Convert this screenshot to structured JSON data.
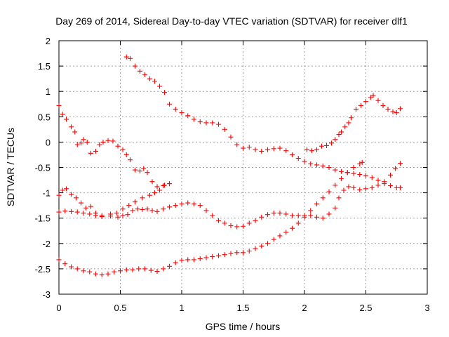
{
  "chart_data": {
    "type": "scatter",
    "title": "Day 269 of 2014, Sidereal Day-to-day VTEC variation (SDTVAR) for receiver dlf1",
    "xlabel": "GPS time / hours",
    "ylabel": "SDTVAR / TECUs",
    "xlim": [
      0,
      3
    ],
    "ylim": [
      -3,
      2
    ],
    "xticks": [
      0,
      0.5,
      1,
      1.5,
      2,
      2.5,
      3
    ],
    "xtick_labels": [
      "0",
      "0.5",
      "1",
      "1.5",
      "2",
      "2.5",
      "3"
    ],
    "yticks": [
      -3,
      -2.5,
      -2,
      -1.5,
      -1,
      -0.5,
      0,
      0.5,
      1,
      1.5,
      2
    ],
    "ytick_labels": [
      "-3",
      "-2.5",
      "-2",
      "-1.5",
      "-1",
      "-0.5",
      "0",
      "0.5",
      "1",
      "1.5",
      "2"
    ],
    "grid": true,
    "marker": "+",
    "color": "#ff0000",
    "series": [
      {
        "points": [
          [
            0.0,
            0.72
          ],
          [
            0.03,
            0.55
          ],
          [
            0.06,
            0.45
          ],
          [
            0.1,
            0.3
          ],
          [
            0.13,
            0.2
          ],
          [
            0.15,
            -0.05
          ],
          [
            0.18,
            -0.02
          ],
          [
            0.2,
            0.05
          ],
          [
            0.23,
            0.0
          ],
          [
            0.26,
            -0.22
          ],
          [
            0.3,
            -0.18
          ],
          [
            0.33,
            -0.05
          ],
          [
            0.36,
            0.0
          ],
          [
            0.4,
            0.03
          ],
          [
            0.44,
            0.02
          ],
          [
            0.48,
            -0.08
          ],
          [
            0.52,
            -0.15
          ],
          [
            0.55,
            -0.25
          ],
          [
            0.58,
            -0.35
          ],
          [
            0.62,
            -0.55
          ],
          [
            0.66,
            -0.57
          ],
          [
            0.69,
            -0.52
          ],
          [
            0.72,
            -0.6
          ],
          [
            0.76,
            -0.78
          ],
          [
            0.8,
            -0.88
          ],
          [
            0.85,
            -0.86
          ],
          [
            0.9,
            -0.82
          ]
        ]
      },
      {
        "points": [
          [
            0.0,
            -1.05
          ],
          [
            0.03,
            -0.95
          ],
          [
            0.06,
            -0.92
          ],
          [
            0.1,
            -1.03
          ],
          [
            0.14,
            -1.1
          ],
          [
            0.18,
            -1.2
          ],
          [
            0.22,
            -1.3
          ],
          [
            0.26,
            -1.27
          ],
          [
            0.3,
            -1.4
          ],
          [
            0.35,
            -1.45
          ],
          [
            0.42,
            -1.42
          ],
          [
            0.47,
            -1.4
          ],
          [
            0.52,
            -1.32
          ],
          [
            0.57,
            -1.25
          ],
          [
            0.62,
            -1.18
          ],
          [
            0.68,
            -1.1
          ],
          [
            0.74,
            -1.05
          ],
          [
            0.78,
            -1.0
          ],
          [
            0.82,
            -0.95
          ],
          [
            0.86,
            -0.85
          ],
          [
            0.9,
            -0.82
          ]
        ]
      },
      {
        "points": [
          [
            0.0,
            -1.38
          ],
          [
            0.05,
            -1.36
          ],
          [
            0.1,
            -1.37
          ],
          [
            0.15,
            -1.38
          ],
          [
            0.2,
            -1.4
          ],
          [
            0.25,
            -1.42
          ],
          [
            0.3,
            -1.45
          ],
          [
            0.35,
            -1.47
          ],
          [
            0.42,
            -1.46
          ],
          [
            0.48,
            -1.48
          ],
          [
            0.52,
            -1.45
          ],
          [
            0.56,
            -1.43
          ],
          [
            0.6,
            -1.35
          ],
          [
            0.64,
            -1.32
          ],
          [
            0.68,
            -1.33
          ],
          [
            0.72,
            -1.32
          ],
          [
            0.76,
            -1.35
          ],
          [
            0.8,
            -1.37
          ],
          [
            0.85,
            -1.32
          ],
          [
            0.9,
            -1.28
          ],
          [
            0.95,
            -1.25
          ],
          [
            1.0,
            -1.22
          ],
          [
            1.05,
            -1.2
          ],
          [
            1.1,
            -1.22
          ],
          [
            1.15,
            -1.25
          ],
          [
            1.2,
            -1.35
          ],
          [
            1.25,
            -1.45
          ],
          [
            1.3,
            -1.55
          ],
          [
            1.35,
            -1.6
          ],
          [
            1.4,
            -1.65
          ],
          [
            1.45,
            -1.67
          ],
          [
            1.5,
            -1.66
          ],
          [
            1.55,
            -1.6
          ],
          [
            1.6,
            -1.55
          ],
          [
            1.65,
            -1.48
          ],
          [
            1.7,
            -1.43
          ],
          [
            1.75,
            -1.4
          ],
          [
            1.8,
            -1.4
          ],
          [
            1.85,
            -1.42
          ],
          [
            1.9,
            -1.45
          ],
          [
            1.95,
            -1.45
          ],
          [
            2.0,
            -1.45
          ],
          [
            2.05,
            -1.45
          ],
          [
            2.1,
            -1.48
          ],
          [
            2.15,
            -1.5
          ],
          [
            2.2,
            -1.42
          ],
          [
            2.25,
            -1.3
          ],
          [
            2.28,
            -1.1
          ],
          [
            2.32,
            -0.95
          ],
          [
            2.36,
            -0.88
          ],
          [
            2.4,
            -0.9
          ],
          [
            2.45,
            -0.94
          ],
          [
            2.5,
            -0.92
          ],
          [
            2.55,
            -0.9
          ],
          [
            2.6,
            -0.85
          ],
          [
            2.65,
            -0.78
          ],
          [
            2.7,
            -0.65
          ],
          [
            2.74,
            -0.52
          ],
          [
            2.78,
            -0.42
          ]
        ]
      },
      {
        "points": [
          [
            0.55,
            1.68
          ],
          [
            0.58,
            1.65
          ],
          [
            0.62,
            1.5
          ],
          [
            0.66,
            1.4
          ],
          [
            0.7,
            1.33
          ],
          [
            0.74,
            1.25
          ],
          [
            0.78,
            1.2
          ],
          [
            0.82,
            1.1
          ],
          [
            0.86,
            0.98
          ],
          [
            0.9,
            0.75
          ],
          [
            0.95,
            0.65
          ],
          [
            1.0,
            0.58
          ],
          [
            1.05,
            0.52
          ],
          [
            1.1,
            0.45
          ],
          [
            1.15,
            0.4
          ],
          [
            1.2,
            0.38
          ],
          [
            1.25,
            0.38
          ],
          [
            1.3,
            0.35
          ],
          [
            1.35,
            0.25
          ],
          [
            1.4,
            0.1
          ],
          [
            1.45,
            -0.05
          ],
          [
            1.5,
            -0.12
          ],
          [
            1.55,
            -0.1
          ],
          [
            1.6,
            -0.15
          ],
          [
            1.65,
            -0.18
          ],
          [
            1.7,
            -0.15
          ],
          [
            1.75,
            -0.13
          ],
          [
            1.8,
            -0.12
          ],
          [
            1.85,
            -0.17
          ],
          [
            1.9,
            -0.25
          ],
          [
            1.95,
            -0.32
          ],
          [
            2.0,
            -0.38
          ],
          [
            2.05,
            -0.43
          ],
          [
            2.1,
            -0.45
          ],
          [
            2.15,
            -0.47
          ],
          [
            2.2,
            -0.5
          ],
          [
            2.25,
            -0.55
          ],
          [
            2.3,
            -0.58
          ],
          [
            2.35,
            -0.6
          ],
          [
            2.4,
            -0.62
          ],
          [
            2.45,
            -0.64
          ],
          [
            2.5,
            -0.66
          ],
          [
            2.55,
            -0.7
          ],
          [
            2.6,
            -0.75
          ],
          [
            2.65,
            -0.82
          ],
          [
            2.7,
            -0.86
          ],
          [
            2.75,
            -0.9
          ],
          [
            2.78,
            -0.9
          ]
        ]
      },
      {
        "points": [
          [
            2.02,
            -0.15
          ],
          [
            2.06,
            -0.17
          ],
          [
            2.1,
            -0.15
          ],
          [
            2.14,
            -0.08
          ],
          [
            2.18,
            -0.07
          ],
          [
            2.22,
            -0.02
          ],
          [
            2.25,
            0.05
          ],
          [
            2.28,
            0.15
          ],
          [
            2.3,
            0.2
          ],
          [
            2.33,
            0.3
          ],
          [
            2.36,
            0.38
          ],
          [
            2.38,
            0.48
          ],
          [
            2.42,
            0.65
          ],
          [
            2.46,
            0.72
          ],
          [
            2.5,
            0.8
          ],
          [
            2.54,
            0.88
          ],
          [
            2.56,
            0.92
          ],
          [
            2.6,
            0.82
          ],
          [
            2.64,
            0.72
          ],
          [
            2.68,
            0.65
          ],
          [
            2.72,
            0.6
          ],
          [
            2.75,
            0.58
          ],
          [
            2.78,
            0.66
          ]
        ]
      },
      {
        "points": [
          [
            0.0,
            -2.32
          ],
          [
            0.05,
            -2.4
          ],
          [
            0.1,
            -2.46
          ],
          [
            0.15,
            -2.5
          ],
          [
            0.2,
            -2.54
          ],
          [
            0.25,
            -2.56
          ],
          [
            0.3,
            -2.6
          ],
          [
            0.35,
            -2.62
          ],
          [
            0.4,
            -2.6
          ],
          [
            0.45,
            -2.56
          ],
          [
            0.5,
            -2.54
          ],
          [
            0.55,
            -2.52
          ],
          [
            0.6,
            -2.52
          ],
          [
            0.65,
            -2.5
          ],
          [
            0.7,
            -2.5
          ],
          [
            0.75,
            -2.53
          ],
          [
            0.8,
            -2.55
          ],
          [
            0.85,
            -2.5
          ],
          [
            0.9,
            -2.45
          ],
          [
            0.95,
            -2.38
          ],
          [
            1.0,
            -2.33
          ],
          [
            1.05,
            -2.32
          ],
          [
            1.1,
            -2.32
          ],
          [
            1.15,
            -2.3
          ],
          [
            1.2,
            -2.28
          ],
          [
            1.25,
            -2.26
          ],
          [
            1.3,
            -2.24
          ],
          [
            1.35,
            -2.22
          ],
          [
            1.4,
            -2.2
          ],
          [
            1.45,
            -2.18
          ],
          [
            1.5,
            -2.18
          ],
          [
            1.55,
            -2.15
          ],
          [
            1.6,
            -2.1
          ],
          [
            1.65,
            -2.05
          ],
          [
            1.7,
            -2.0
          ],
          [
            1.75,
            -1.92
          ],
          [
            1.8,
            -1.85
          ],
          [
            1.85,
            -1.78
          ],
          [
            1.9,
            -1.7
          ],
          [
            1.95,
            -1.6
          ],
          [
            2.0,
            -1.48
          ],
          [
            2.05,
            -1.35
          ],
          [
            2.1,
            -1.22
          ],
          [
            2.15,
            -1.1
          ],
          [
            2.2,
            -0.98
          ],
          [
            2.25,
            -0.85
          ],
          [
            2.3,
            -0.72
          ],
          [
            2.35,
            -0.6
          ],
          [
            2.4,
            -0.5
          ],
          [
            2.45,
            -0.43
          ],
          [
            2.47,
            -0.4
          ]
        ]
      }
    ]
  }
}
